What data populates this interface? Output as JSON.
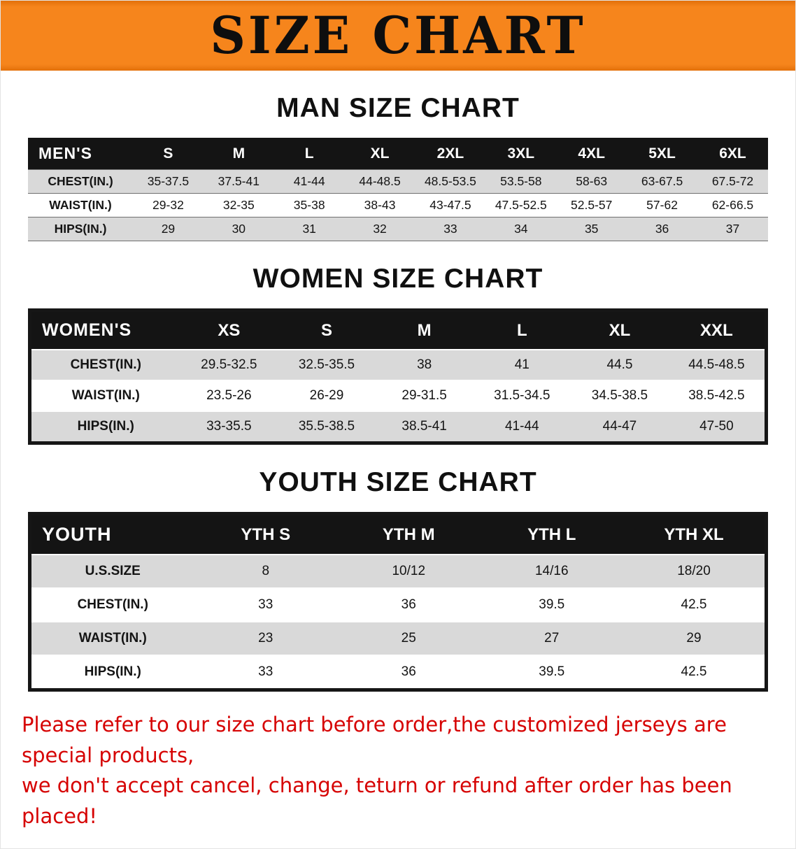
{
  "banner": {
    "title": "SIZE CHART"
  },
  "men": {
    "heading": "MAN SIZE CHART",
    "table": {
      "header": [
        "MEN'S",
        "S",
        "M",
        "L",
        "XL",
        "2XL",
        "3XL",
        "4XL",
        "5XL",
        "6XL"
      ],
      "rows": [
        [
          "CHEST(IN.)",
          "35-37.5",
          "37.5-41",
          "41-44",
          "44-48.5",
          "48.5-53.5",
          "53.5-58",
          "58-63",
          "63-67.5",
          "67.5-72"
        ],
        [
          "WAIST(IN.)",
          "29-32",
          "32-35",
          "35-38",
          "38-43",
          "43-47.5",
          "47.5-52.5",
          "52.5-57",
          "57-62",
          "62-66.5"
        ],
        [
          "HIPS(IN.)",
          "29",
          "30",
          "31",
          "32",
          "33",
          "34",
          "35",
          "36",
          "37"
        ]
      ]
    }
  },
  "women": {
    "heading": "WOMEN SIZE CHART",
    "table": {
      "header": [
        "WOMEN'S",
        "XS",
        "S",
        "M",
        "L",
        "XL",
        "XXL"
      ],
      "rows": [
        [
          "CHEST(IN.)",
          "29.5-32.5",
          "32.5-35.5",
          "38",
          "41",
          "44.5",
          "44.5-48.5"
        ],
        [
          "WAIST(IN.)",
          "23.5-26",
          "26-29",
          "29-31.5",
          "31.5-34.5",
          "34.5-38.5",
          "38.5-42.5"
        ],
        [
          "HIPS(IN.)",
          "33-35.5",
          "35.5-38.5",
          "38.5-41",
          "41-44",
          "44-47",
          "47-50"
        ]
      ]
    }
  },
  "youth": {
    "heading": "YOUTH SIZE CHART",
    "table": {
      "header": [
        "YOUTH",
        "YTH S",
        "YTH M",
        "YTH L",
        "YTH XL"
      ],
      "rows": [
        [
          "U.S.SIZE",
          "8",
          "10/12",
          "14/16",
          "18/20"
        ],
        [
          "CHEST(IN.)",
          "33",
          "36",
          "39.5",
          "42.5"
        ],
        [
          "WAIST(IN.)",
          "23",
          "25",
          "27",
          "29"
        ],
        [
          "HIPS(IN.)",
          "33",
          "36",
          "39.5",
          "42.5"
        ]
      ]
    }
  },
  "footer": {
    "line1": "Please refer to our size chart before order,the customized jerseys are special products,",
    "line2": "we don't accept cancel, change, teturn or refund after order has been placed!"
  },
  "colors": {
    "banner_orange": "#f6851c",
    "table_header_black": "#141414",
    "row_gray": "#d9d9d9",
    "footer_red": "#d60202"
  }
}
